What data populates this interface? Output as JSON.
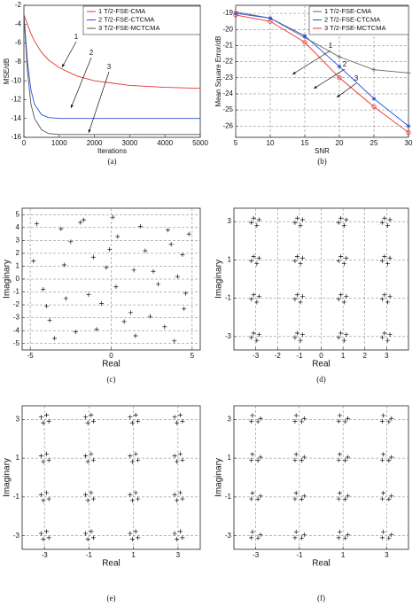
{
  "chart_data": [
    {
      "type": "line",
      "caption": "(a)",
      "x_label": "Iterations",
      "y_label": "MSE/dB",
      "x": [
        0,
        100,
        200,
        300,
        500,
        700,
        1000,
        1500,
        2000,
        3000,
        4000,
        5000
      ],
      "series": [
        {
          "name": "1  T/2-FSE-CMA",
          "color": "#e8332e",
          "values": [
            -3,
            -4,
            -5,
            -5.8,
            -7,
            -7.8,
            -8.6,
            -9.5,
            -10,
            -10.5,
            -10.7,
            -10.8
          ]
        },
        {
          "name": "2  T/2-FSE-CTCMA",
          "color": "#2b4fd6",
          "values": [
            -3,
            -8,
            -11,
            -12.5,
            -13.6,
            -13.9,
            -14,
            -14,
            -14,
            -14,
            -14,
            -14
          ]
        },
        {
          "name": "3  T/2-FSE-MCTCMA",
          "color": "#555555",
          "values": [
            -3,
            -9,
            -12.5,
            -14,
            -15.2,
            -15.6,
            -15.7,
            -15.7,
            -15.7,
            -15.7,
            -15.7,
            -15.7
          ]
        }
      ],
      "annotations": [
        "1",
        "2",
        "3"
      ],
      "xlim": [
        0,
        5000
      ],
      "xticks": [
        0,
        1000,
        2000,
        3000,
        4000,
        5000
      ],
      "ylim": [
        -16,
        -2
      ],
      "yticks": [
        -16,
        -14,
        -12,
        -10,
        -8,
        -6,
        -4,
        -2
      ],
      "grid": false
    },
    {
      "type": "line",
      "caption": "(b)",
      "x_label": "SNR",
      "y_label": "Mean Square Error/dB",
      "x": [
        5,
        10,
        15,
        20,
        25,
        30
      ],
      "series": [
        {
          "name": "1  T/2-FSE-CMA",
          "color": "#666666",
          "marker": "+",
          "values": [
            -18.9,
            -19.3,
            -20.5,
            -21.7,
            -22.5,
            -22.7
          ]
        },
        {
          "name": "2  T/2-FSE-CTCMA",
          "color": "#2b4fd6",
          "marker": "*",
          "values": [
            -19,
            -19.3,
            -20.4,
            -22.3,
            -24.3,
            -26
          ]
        },
        {
          "name": "3  T/2-FSE-MCTCMA",
          "color": "#e8332e",
          "marker": "o",
          "values": [
            -19.1,
            -19.5,
            -20.8,
            -23,
            -24.8,
            -26.4
          ]
        }
      ],
      "annotations": [
        "1",
        "2",
        "3"
      ],
      "xlim": [
        5,
        30
      ],
      "xticks": [
        5,
        10,
        15,
        20,
        25,
        30
      ],
      "ylim": [
        -26.7,
        -18.5
      ],
      "yticks": [
        -26,
        -25,
        -24,
        -23,
        -22,
        -21,
        -20,
        -19
      ],
      "grid": true
    },
    {
      "type": "scatter",
      "caption": "(c)",
      "x_label": "Real",
      "y_label": "Imaginary",
      "color": "#111111",
      "x": [
        -4.6,
        -3.8,
        -2.9,
        -1.7,
        -0.6,
        0.4,
        1.5,
        2.6,
        3.7,
        4.5,
        -4.2,
        -3.1,
        -2.2,
        -1.1,
        0.1,
        1.2,
        2.1,
        3.3,
        4.1,
        4.8,
        -4.8,
        -3.5,
        -2.5,
        -1.4,
        -0.3,
        0.8,
        1.8,
        2.9,
        3.9,
        4.4,
        -4.0,
        -2.8,
        -1.9,
        -0.9,
        0.3,
        1.4,
        2.4,
        3.5,
        4.6,
        -0.1
      ],
      "values": [
        4.3,
        -3.2,
        1.1,
        4.6,
        -1.9,
        3.3,
        -4.4,
        0.6,
        2.7,
        -2.3,
        -0.8,
        3.9,
        -4.1,
        1.7,
        4.8,
        -2.6,
        2.2,
        -3.7,
        0.2,
        3.5,
        1.4,
        -4.6,
        2.9,
        -1.2,
        0.9,
        -3.3,
        4.1,
        -0.4,
        -4.8,
        1.9,
        -2.1,
        -1.5,
        4.4,
        -3.9,
        -0.6,
        0.7,
        -2.9,
        3.8,
        -1.1,
        2.3
      ],
      "xlim": [
        -5.5,
        5.5
      ],
      "xticks": [
        -5,
        0,
        5
      ],
      "ylim": [
        -5.5,
        5.5
      ],
      "yticks": [
        -5,
        -4,
        -3,
        -2,
        -1,
        0,
        1,
        2,
        3,
        4,
        5
      ],
      "grid": true
    },
    {
      "type": "scatter",
      "caption": "(d)",
      "x_label": "Real",
      "y_label": "Imaginary",
      "color": "#111111",
      "x": [
        -2.85,
        -3.2,
        -2.95,
        -3.1,
        -0.85,
        -1.2,
        -0.95,
        -1.1,
        1.15,
        0.8,
        1.05,
        0.9,
        3.15,
        2.8,
        3.05,
        2.9,
        -2.85,
        -3.2,
        -2.95,
        -3.1,
        -0.85,
        -1.2,
        -0.95,
        -1.1,
        1.15,
        0.8,
        1.05,
        0.9,
        3.15,
        2.8,
        3.05,
        2.9,
        -2.85,
        -3.2,
        -2.95,
        -3.1,
        -0.85,
        -1.2,
        -0.95,
        -1.1,
        1.15,
        0.8,
        1.05,
        0.9,
        3.15,
        2.8,
        3.05,
        2.9,
        -2.85,
        -3.2,
        -2.95,
        -3.1,
        -0.85,
        -1.2,
        -0.95,
        -1.1,
        1.15,
        0.8,
        1.05,
        0.9,
        3.15,
        2.8,
        3.05,
        2.9
      ],
      "values": [
        3.1,
        2.95,
        2.8,
        3.18,
        3.1,
        2.95,
        2.8,
        3.18,
        3.1,
        2.95,
        2.8,
        3.18,
        3.1,
        2.95,
        2.8,
        3.18,
        1.1,
        0.95,
        0.8,
        1.18,
        1.1,
        0.95,
        0.8,
        1.18,
        1.1,
        0.95,
        0.8,
        1.18,
        1.1,
        0.95,
        0.8,
        1.18,
        -0.9,
        -1.05,
        -1.2,
        -0.82,
        -0.9,
        -1.05,
        -1.2,
        -0.82,
        -0.9,
        -1.05,
        -1.2,
        -0.82,
        -0.9,
        -1.05,
        -1.2,
        -0.82,
        -2.9,
        -3.05,
        -3.2,
        -2.82,
        -2.9,
        -3.05,
        -3.2,
        -2.82,
        -2.9,
        -3.05,
        -3.2,
        -2.82,
        -2.9,
        -3.05,
        -3.2,
        -2.82
      ],
      "xlim": [
        -4,
        4
      ],
      "xticks": [
        -3,
        -2,
        -1,
        0,
        1,
        2,
        3
      ],
      "ylim": [
        -3.7,
        3.7
      ],
      "yticks": [
        -3,
        -1,
        1,
        3
      ],
      "grid": true
    },
    {
      "type": "scatter",
      "caption": "(e)",
      "x_label": "Real",
      "y_label": "Imaginary",
      "color": "#111111",
      "x": [
        -3.15,
        -2.8,
        -2.9,
        -3.05,
        -1.15,
        -0.8,
        -0.9,
        -1.05,
        0.85,
        1.2,
        1.1,
        0.95,
        2.85,
        3.2,
        3.1,
        2.95,
        -3.15,
        -2.8,
        -2.9,
        -3.05,
        -1.15,
        -0.8,
        -0.9,
        -1.05,
        0.85,
        1.2,
        1.1,
        0.95,
        2.85,
        3.2,
        3.1,
        2.95,
        -3.15,
        -2.8,
        -2.9,
        -3.05,
        -1.15,
        -0.8,
        -0.9,
        -1.05,
        0.85,
        1.2,
        1.1,
        0.95,
        2.85,
        3.2,
        3.1,
        2.95,
        -3.15,
        -2.8,
        -2.9,
        -3.05,
        -1.15,
        -0.8,
        -0.9,
        -1.05,
        0.85,
        1.2,
        1.1,
        0.95,
        2.85,
        3.2,
        3.1,
        2.95
      ],
      "values": [
        3.12,
        2.9,
        3.22,
        2.82,
        3.12,
        2.9,
        3.22,
        2.82,
        3.12,
        2.9,
        3.22,
        2.82,
        3.12,
        2.9,
        3.22,
        2.82,
        1.12,
        0.9,
        1.22,
        0.82,
        1.12,
        0.9,
        1.22,
        0.82,
        1.12,
        0.9,
        1.22,
        0.82,
        1.12,
        0.9,
        1.22,
        0.82,
        -0.88,
        -1.1,
        -0.78,
        -1.18,
        -0.88,
        -1.1,
        -0.78,
        -1.18,
        -0.88,
        -1.1,
        -0.78,
        -1.18,
        -0.88,
        -1.1,
        -0.78,
        -1.18,
        -2.88,
        -3.1,
        -2.78,
        -3.18,
        -2.88,
        -3.1,
        -2.78,
        -3.18,
        -2.88,
        -3.1,
        -2.78,
        -3.18,
        -2.88,
        -3.1,
        -2.78,
        -3.18
      ],
      "xlim": [
        -4,
        4
      ],
      "xticks": [
        -3,
        -1,
        1,
        3
      ],
      "ylim": [
        -3.7,
        3.7
      ],
      "yticks": [
        -3,
        -1,
        1,
        3
      ],
      "grid": true
    },
    {
      "type": "scatter",
      "caption": "(f)",
      "x_label": "Real",
      "y_label": "Imaginary",
      "color": "#111111",
      "x": [
        -2.9,
        -3.15,
        -2.78,
        -3.2,
        -0.9,
        -1.15,
        -0.78,
        -1.2,
        1.1,
        0.85,
        1.22,
        0.8,
        3.1,
        2.85,
        3.22,
        2.8,
        -2.9,
        -3.15,
        -2.78,
        -3.2,
        -0.9,
        -1.15,
        -0.78,
        -1.2,
        1.1,
        0.85,
        1.22,
        0.8,
        3.1,
        2.85,
        3.22,
        2.8,
        -2.9,
        -3.15,
        -2.78,
        -3.2,
        -0.9,
        -1.15,
        -0.78,
        -1.2,
        1.1,
        0.85,
        1.22,
        0.8,
        3.1,
        2.85,
        3.22,
        2.8,
        -2.9,
        -3.15,
        -2.78,
        -3.2,
        -0.9,
        -1.15,
        -0.78,
        -1.2,
        1.1,
        0.85,
        1.22,
        0.8,
        3.1,
        2.85,
        3.22,
        2.8
      ],
      "values": [
        2.88,
        3.2,
        3.05,
        2.9,
        2.88,
        3.2,
        3.05,
        2.9,
        2.88,
        3.2,
        3.05,
        2.9,
        2.88,
        3.2,
        3.05,
        2.9,
        0.88,
        1.2,
        1.05,
        0.9,
        0.88,
        1.2,
        1.05,
        0.9,
        0.88,
        1.2,
        1.05,
        0.9,
        0.88,
        1.2,
        1.05,
        0.9,
        -1.12,
        -0.8,
        -0.95,
        -1.1,
        -1.12,
        -0.8,
        -0.95,
        -1.1,
        -1.12,
        -0.8,
        -0.95,
        -1.1,
        -1.12,
        -0.8,
        -0.95,
        -1.1,
        -3.12,
        -2.8,
        -2.95,
        -3.1,
        -3.12,
        -2.8,
        -2.95,
        -3.1,
        -3.12,
        -2.8,
        -2.95,
        -3.1,
        -3.12,
        -2.8,
        -2.95,
        -3.1
      ],
      "xlim": [
        -4,
        4
      ],
      "xticks": [
        -3,
        -1,
        1,
        3
      ],
      "ylim": [
        -3.7,
        3.7
      ],
      "yticks": [
        -3,
        -1,
        1,
        3
      ],
      "grid": true
    }
  ]
}
